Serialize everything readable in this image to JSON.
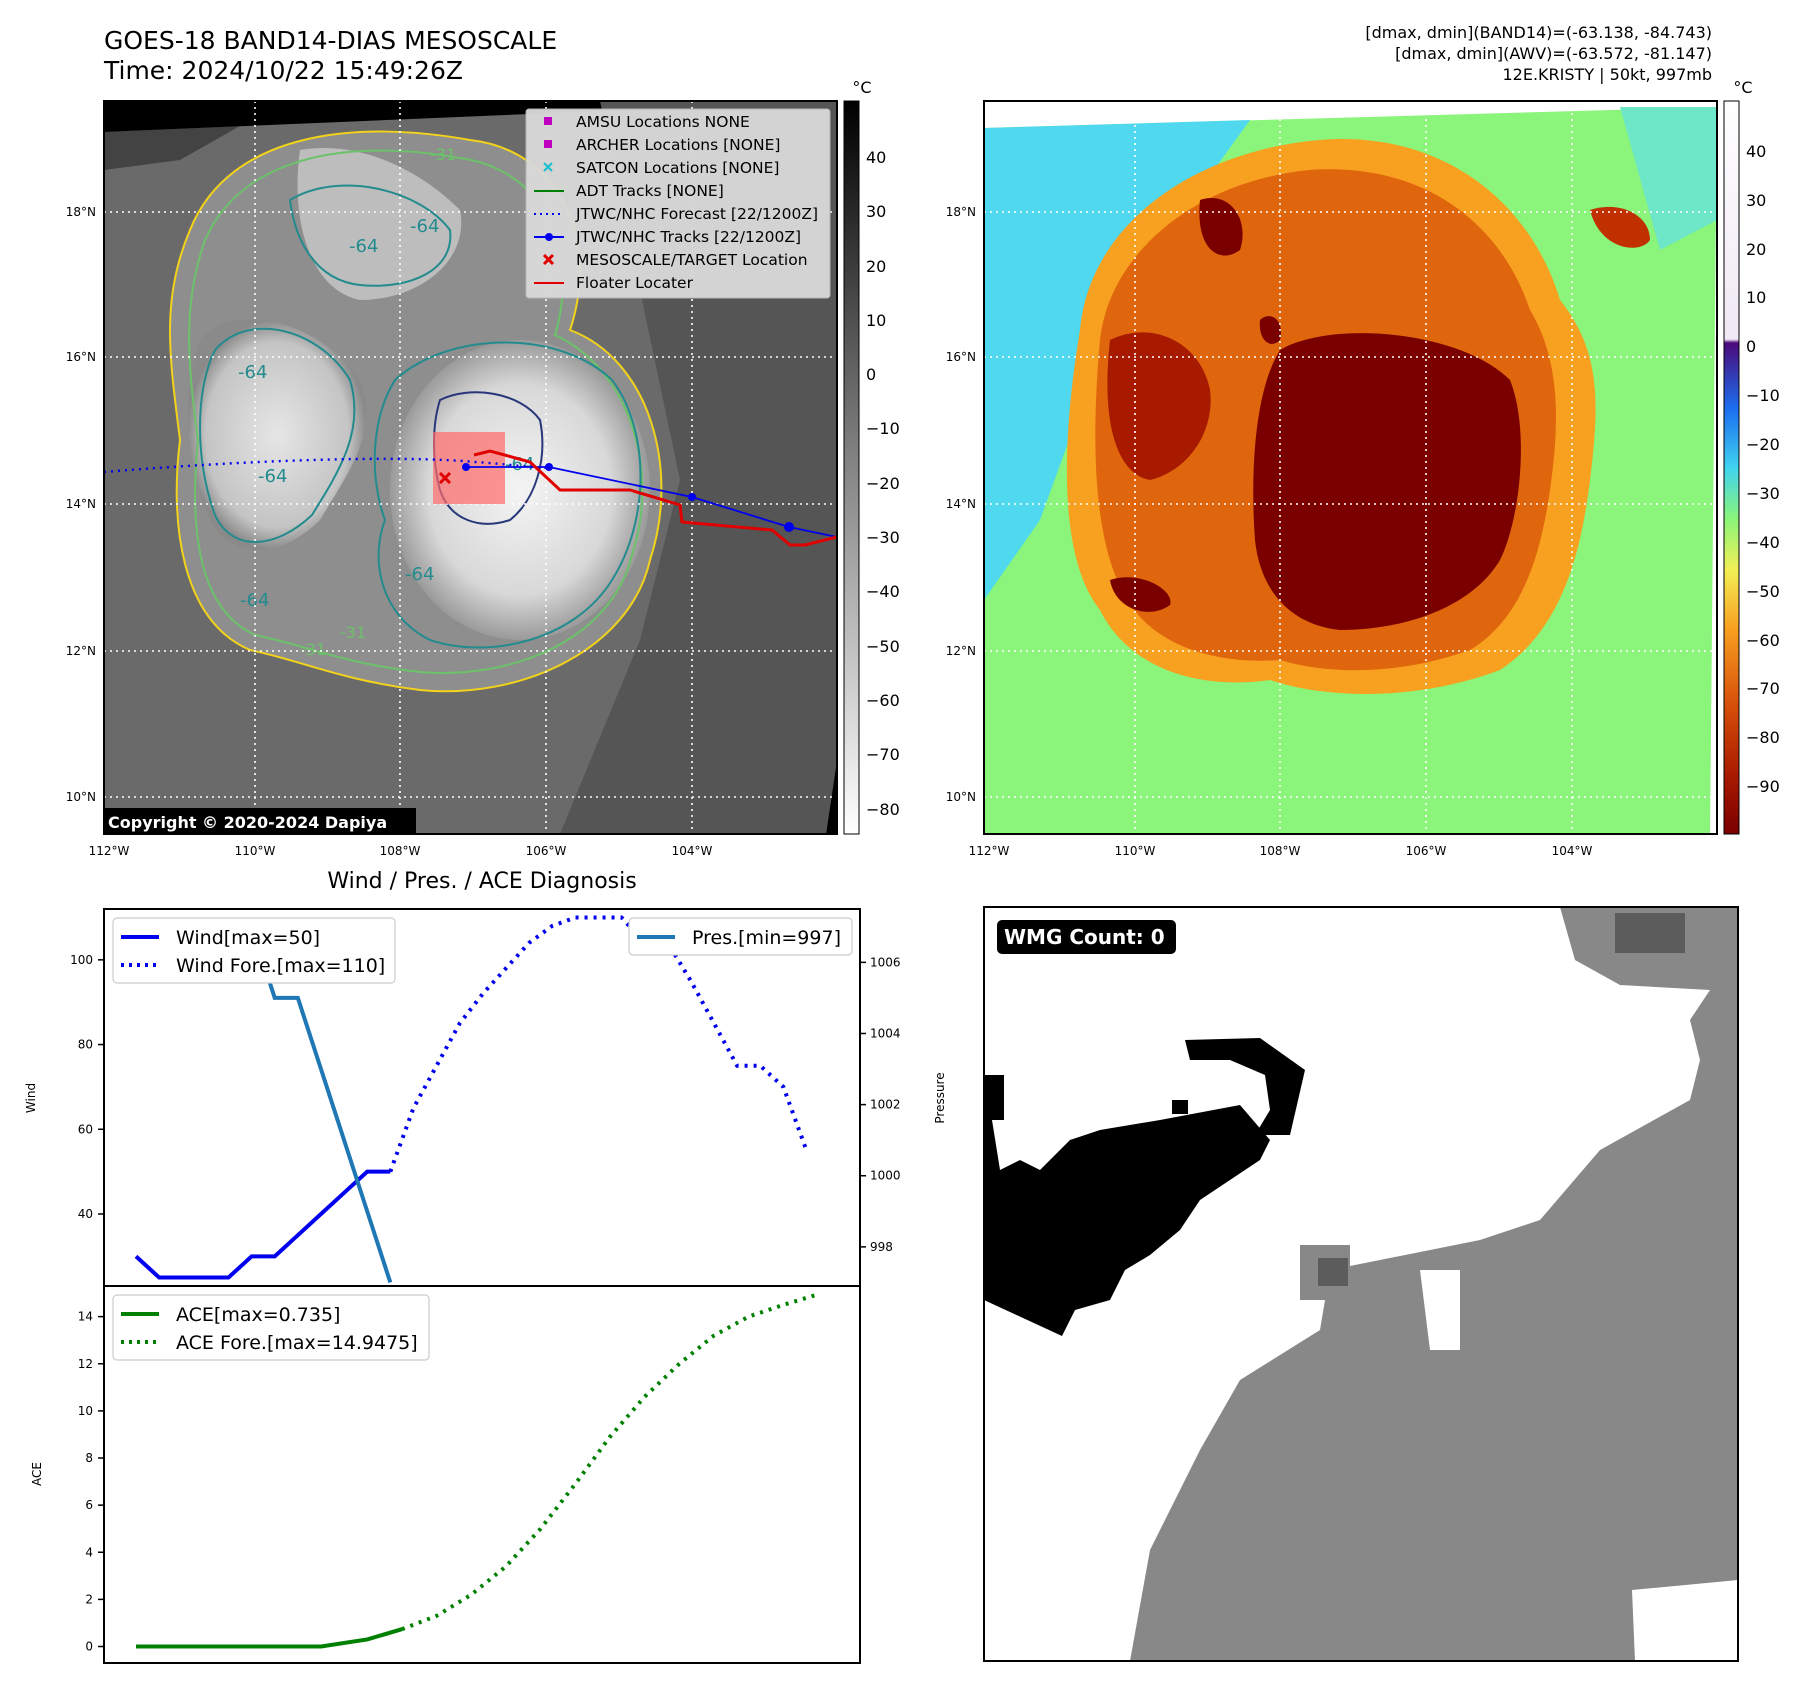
{
  "header": {
    "title_line1": "GOES-18 BAND14-DIAS MESOSCALE",
    "title_line2": "Time: 2024/10/22 15:49:26Z",
    "stats_line1": "[dmax, dmin](BAND14)=(-63.138, -84.743)",
    "stats_line2": "[dmax, dmin](AWV)=(-63.572, -81.147)",
    "stats_line3": "12E.KRISTY | 50kt, 997mb"
  },
  "colors": {
    "red_track": "#e00000",
    "jtwc_blue": "#0000ee",
    "ace_green": "#008000",
    "pres_blue": "#1f77b4",
    "yellow_contour": "#f2d21b",
    "green_contour": "#6cc26a",
    "teal_contour": "#238b8e",
    "navy_contour": "#27377a",
    "wmg_gray": "#888888"
  },
  "map_left": {
    "unit": "°C",
    "colorbar_ticks": [
      "40",
      "30",
      "20",
      "10",
      "0",
      "−10",
      "−20",
      "−30",
      "−40",
      "−50",
      "−60",
      "−70",
      "−80"
    ],
    "lat_ticks": [
      "18°N",
      "16°N",
      "14°N",
      "12°N",
      "10°N"
    ],
    "lon_ticks": [
      "112°W",
      "110°W",
      "108°W",
      "106°W",
      "104°W"
    ],
    "contour_labels": [
      "-64",
      "-64",
      "-64",
      "-64",
      "-64",
      "-64",
      "-64",
      "-31",
      "-31",
      "-31"
    ],
    "copyright": "Copyright © 2020-2024 Dapiya",
    "legend": [
      {
        "label": "AMSU Locations NONE",
        "marker": "square",
        "color": "#bf00bf"
      },
      {
        "label": "ARCHER Locations [NONE]",
        "marker": "square",
        "color": "#bf00bf"
      },
      {
        "label": "SATCON Locations [NONE]",
        "marker": "x",
        "color": "#17becf"
      },
      {
        "label": "ADT Tracks [NONE]",
        "marker": "line",
        "color": "#008000"
      },
      {
        "label": "JTWC/NHC Forecast [22/1200Z]",
        "marker": "dotted",
        "color": "#0000ee"
      },
      {
        "label": "JTWC/NHC Tracks [22/1200Z]",
        "marker": "line-dot",
        "color": "#0000ee"
      },
      {
        "label": "MESOSCALE/TARGET Location",
        "marker": "x",
        "color": "#e00000"
      },
      {
        "label": "Floater Locater",
        "marker": "line",
        "color": "#e00000"
      }
    ]
  },
  "map_right": {
    "unit": "°C",
    "colorbar_ticks": [
      "40",
      "30",
      "20",
      "10",
      "0",
      "−10",
      "−20",
      "−30",
      "−40",
      "−50",
      "−60",
      "−70",
      "−80",
      "−90"
    ],
    "lat_ticks": [
      "18°N",
      "16°N",
      "14°N",
      "12°N",
      "10°N"
    ],
    "lon_ticks": [
      "112°W",
      "110°W",
      "108°W",
      "106°W",
      "104°W"
    ]
  },
  "wmg": {
    "badge": "WMG Count: 0"
  },
  "chart_data": [
    {
      "type": "line",
      "title": "Wind / Pres. / ACE Diagnosis",
      "ylabel": "Wind",
      "ylabel_right": "Pressure",
      "ylim": [
        23,
        112
      ],
      "ylim_right": [
        996.9,
        1007.5
      ],
      "x": [
        0,
        1,
        2,
        3,
        4,
        5,
        6,
        7,
        8,
        9,
        10,
        11,
        12,
        13,
        14,
        15,
        16,
        17,
        18,
        19,
        20
      ],
      "yticks": [
        "100",
        "80",
        "60",
        "40"
      ],
      "yticks_right": [
        "1006",
        "1004",
        "1002",
        "1000",
        "998"
      ],
      "series": [
        {
          "name": "Wind[max=50]",
          "style": "solid",
          "axis": "left",
          "color": "#0000ee",
          "x": [
            0,
            1,
            2,
            3,
            4,
            5,
            6,
            7,
            8,
            9,
            10,
            11
          ],
          "values": [
            30,
            25,
            25,
            25,
            25,
            30,
            30,
            35,
            40,
            45,
            50,
            50
          ]
        },
        {
          "name": "Wind Fore.[max=110]",
          "style": "dotted",
          "axis": "left",
          "color": "#0000ee",
          "x": [
            11,
            12,
            13,
            14,
            15,
            16,
            17,
            18,
            19,
            20,
            21,
            22,
            23,
            24,
            25,
            26,
            27,
            28,
            29
          ],
          "values": [
            50,
            65,
            75,
            85,
            92,
            98,
            104,
            108,
            110,
            110,
            110,
            104,
            104,
            95,
            85,
            75,
            75,
            70,
            55
          ]
        },
        {
          "name": "Pres.[min=997]",
          "style": "solid",
          "axis": "right",
          "color": "#1f77b4",
          "x": [
            0,
            1,
            2,
            3,
            4,
            5,
            6,
            7,
            8,
            9,
            10,
            11
          ],
          "values": [
            1006,
            1006,
            1006,
            1007,
            1007,
            1007,
            1005,
            1005,
            1003,
            1001,
            999,
            997
          ]
        }
      ],
      "legend_left": [
        "Wind[max=50]",
        "Wind Fore.[max=110]"
      ],
      "legend_right": [
        "Pres.[min=997]"
      ]
    },
    {
      "type": "line",
      "ylabel": "ACE",
      "ylim": [
        -0.7,
        15.3
      ],
      "yticks": [
        "14",
        "12",
        "10",
        "8",
        "6",
        "4",
        "2",
        "0"
      ],
      "series": [
        {
          "name": "ACE[max=0.735]",
          "style": "solid",
          "color": "#008000",
          "x": [
            0,
            2,
            4,
            6,
            8,
            10,
            11.5
          ],
          "values": [
            0,
            0,
            0,
            0,
            0,
            0.3,
            0.735
          ]
        },
        {
          "name": "ACE Fore.[max=14.9475]",
          "style": "dotted",
          "color": "#008000",
          "x": [
            11.5,
            13,
            14.5,
            16,
            17.5,
            19,
            20.5,
            22,
            23.5,
            25,
            26.5,
            28,
            29.5
          ],
          "values": [
            0.735,
            1.3,
            2.2,
            3.4,
            5,
            6.9,
            8.9,
            10.6,
            12,
            13.2,
            14,
            14.5,
            14.9475
          ]
        }
      ],
      "legend": [
        "ACE[max=0.735]",
        "ACE Fore.[max=14.9475]"
      ]
    }
  ]
}
